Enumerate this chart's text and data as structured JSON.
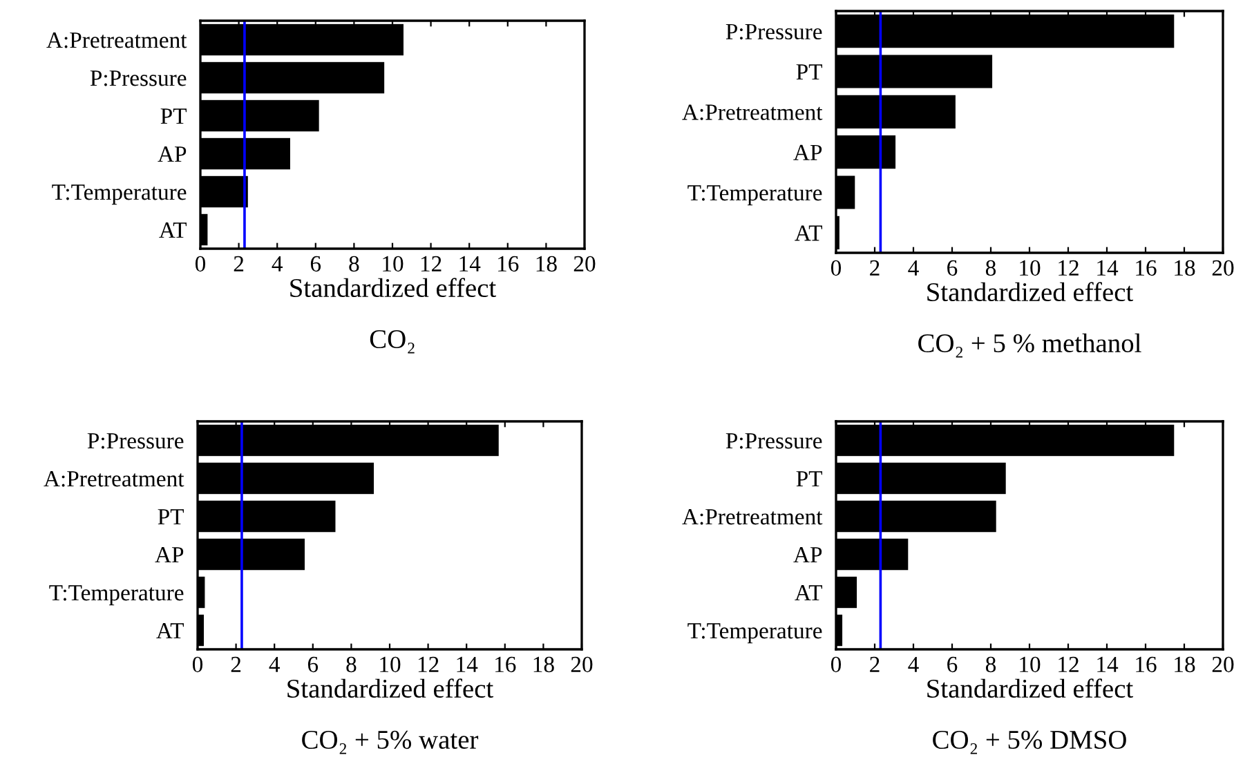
{
  "chart_data": [
    {
      "type": "bar",
      "orientation": "horizontal",
      "title": "CO₂",
      "xlabel": "Standardized effect",
      "categories": [
        "A:Pretreatment",
        "P:Pressure",
        "PT",
        "AP",
        "T:Temperature",
        "AT"
      ],
      "values": [
        10.6,
        9.6,
        6.2,
        4.7,
        2.5,
        0.4
      ],
      "color": "#000000",
      "xlim": [
        0,
        20
      ],
      "xticks": [
        0,
        2,
        4,
        6,
        8,
        10,
        12,
        14,
        16,
        18,
        20
      ],
      "ref_lines": [
        {
          "axis": "x",
          "value": 2.3,
          "color": "#0000ff"
        }
      ],
      "grid": false,
      "legend": false
    },
    {
      "type": "bar",
      "orientation": "horizontal",
      "title": "CO₂ + 5 % methanol",
      "xlabel": "Standardized effect",
      "categories": [
        "P:Pressure",
        "PT",
        "A:Pretreatment",
        "AP",
        "T:Temperature",
        "AT"
      ],
      "values": [
        17.5,
        8.1,
        6.2,
        3.1,
        1.0,
        0.2
      ],
      "color": "#000000",
      "xlim": [
        0,
        20
      ],
      "xticks": [
        0,
        2,
        4,
        6,
        8,
        10,
        12,
        14,
        16,
        18,
        20
      ],
      "ref_lines": [
        {
          "axis": "x",
          "value": 2.3,
          "color": "#0000ff"
        }
      ],
      "grid": false,
      "legend": false
    },
    {
      "type": "bar",
      "orientation": "horizontal",
      "title": "CO₂ + 5% water",
      "xlabel": "Standardized effect",
      "categories": [
        "P:Pressure",
        "A:Pretreatment",
        "PT",
        "AP",
        "T:Temperature",
        "AT"
      ],
      "values": [
        15.7,
        9.2,
        7.2,
        5.6,
        0.4,
        0.35
      ],
      "color": "#000000",
      "xlim": [
        0,
        20
      ],
      "xticks": [
        0,
        2,
        4,
        6,
        8,
        10,
        12,
        14,
        16,
        18,
        20
      ],
      "ref_lines": [
        {
          "axis": "x",
          "value": 2.3,
          "color": "#0000ff"
        }
      ],
      "grid": false,
      "legend": false
    },
    {
      "type": "bar",
      "orientation": "horizontal",
      "title": "CO₂ + 5% DMSO",
      "xlabel": "Standardized effect",
      "categories": [
        "P:Pressure",
        "PT",
        "A:Pretreatment",
        "AP",
        "AT",
        "T:Temperature"
      ],
      "values": [
        17.5,
        8.8,
        8.3,
        3.75,
        1.1,
        0.35
      ],
      "color": "#000000",
      "xlim": [
        0,
        20
      ],
      "xticks": [
        0,
        2,
        4,
        6,
        8,
        10,
        12,
        14,
        16,
        18,
        20
      ],
      "ref_lines": [
        {
          "axis": "x",
          "value": 2.3,
          "color": "#0000ff"
        }
      ],
      "grid": false,
      "legend": false
    }
  ]
}
